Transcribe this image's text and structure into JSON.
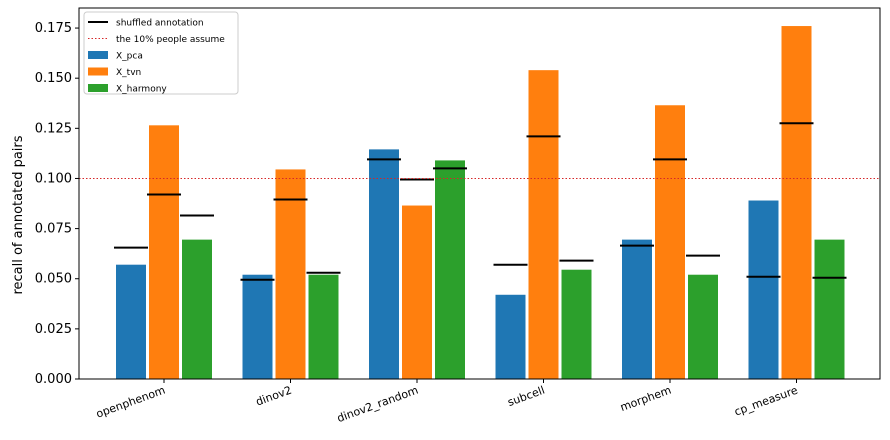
{
  "chart_data": {
    "type": "bar",
    "ylabel": "recall of annotated pairs",
    "xlabel": "",
    "title": "",
    "ylim": [
      0,
      0.185
    ],
    "yticks": [
      0.0,
      0.025,
      0.05,
      0.075,
      0.1,
      0.125,
      0.15,
      0.175
    ],
    "ytick_labels": [
      "0.000",
      "0.025",
      "0.050",
      "0.075",
      "0.100",
      "0.125",
      "0.150",
      "0.175"
    ],
    "categories": [
      "openphenom",
      "dinov2",
      "dinov2_random",
      "subcell",
      "morphem",
      "cp_measure"
    ],
    "series": [
      {
        "name": "X_pca",
        "color": "#1f77b4",
        "values": [
          0.057,
          0.052,
          0.1145,
          0.042,
          0.0695,
          0.089
        ],
        "shuffled": [
          0.0655,
          0.0495,
          0.1095,
          0.057,
          0.0665,
          0.051
        ]
      },
      {
        "name": "X_tvn",
        "color": "#ff7f0e",
        "values": [
          0.1265,
          0.1045,
          0.0865,
          0.154,
          0.1365,
          0.176
        ],
        "shuffled": [
          0.092,
          0.0895,
          0.0995,
          0.121,
          0.1095,
          0.1275
        ]
      },
      {
        "name": "X_harmony",
        "color": "#2ca02c",
        "values": [
          0.0695,
          0.052,
          0.109,
          0.0545,
          0.052,
          0.0695
        ],
        "shuffled": [
          0.0815,
          0.053,
          0.105,
          0.059,
          0.0615,
          0.0505
        ]
      }
    ],
    "reference_line": {
      "value": 0.1,
      "color": "#d62728",
      "label": "the 10% people assume"
    },
    "shuffled_label": "shuffled annotation",
    "legend_position": "top-left",
    "grid": false
  }
}
